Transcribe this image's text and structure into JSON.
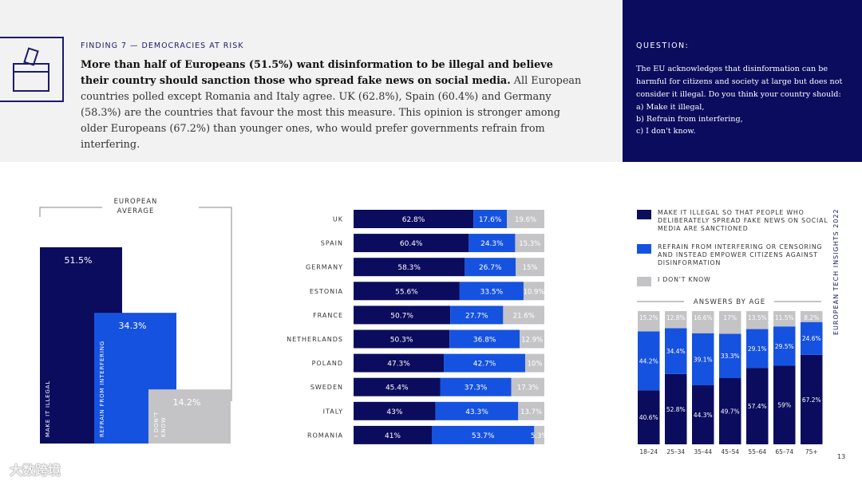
{
  "header": {
    "finding": "FINDING 7 — DEMOCRACIES AT RISK",
    "lead_bold": "More than half of Europeans (51.5%) want disinformation to be illegal and believe their country should sanction those who spread fake news on social media.",
    "lead_rest": " All European countries polled except Romania and Italy agree. UK (62.8%), Spain (60.4%) and Germany (58.3%) are the countries that favour the most this measure. This opinion is stronger among older Europeans (67.2%) than younger ones, who would prefer governments refrain from interfering."
  },
  "question": {
    "title": "QUESTION:",
    "text": "The EU acknowledges that disinformation can be harmful for citizens and society at large but does not consider it illegal. Do you think your country should:",
    "options": [
      "a) Make it illegal,",
      "b) Refrain from interfering,",
      "c) I don't know."
    ]
  },
  "colors": {
    "illegal": "#0b0c5e",
    "refrain": "#1652e0",
    "dontknow": "#c4c4c6"
  },
  "legend": [
    {
      "key": "illegal",
      "label": "MAKE IT ILLEGAL SO THAT PEOPLE WHO DELIBERATELY SPREAD FAKE NEWS ON SOCIAL MEDIA ARE SANCTIONED"
    },
    {
      "key": "refrain",
      "label": "REFRAIN FROM INTERFERING OR CENSORING AND INSTEAD EMPOWER CITIZENS AGAINST DISINFORMATION"
    },
    {
      "key": "dontknow",
      "label": "I DON'T KNOW"
    }
  ],
  "side_text": "EUROPEAN TECH INSIGHTS 2022",
  "page_number": "13",
  "watermark": "大数跨境",
  "chart_data": [
    {
      "type": "bar",
      "title": "EUROPEAN AVERAGE",
      "categories": [
        "MAKE IT ILLEGAL",
        "REFRAIN FROM INTERFERING",
        "I DON'T KNOW"
      ],
      "values": [
        51.5,
        34.3,
        14.2
      ],
      "labels": [
        "51.5%",
        "34.3%",
        "14.2%"
      ],
      "ylim": [
        0,
        60
      ]
    },
    {
      "type": "bar",
      "orientation": "horizontal",
      "stacked": true,
      "categories": [
        "UK",
        "SPAIN",
        "GERMANY",
        "ESTONIA",
        "FRANCE",
        "NETHERLANDS",
        "POLAND",
        "SWEDEN",
        "ITALY",
        "ROMANIA"
      ],
      "series": [
        {
          "key": "illegal",
          "values": [
            62.8,
            60.4,
            58.3,
            55.6,
            50.7,
            50.3,
            47.3,
            45.4,
            43,
            41
          ],
          "labels": [
            "62.8%",
            "60.4%",
            "58.3%",
            "55.6%",
            "50.7%",
            "50.3%",
            "47.3%",
            "45.4%",
            "43%",
            "41%"
          ]
        },
        {
          "key": "refrain",
          "values": [
            17.6,
            24.3,
            26.7,
            33.5,
            27.7,
            36.8,
            42.7,
            37.3,
            43.3,
            53.7
          ],
          "labels": [
            "17.6%",
            "24.3%",
            "26.7%",
            "33.5%",
            "27.7%",
            "36.8%",
            "42.7%",
            "37.3%",
            "43.3%",
            "53.7%"
          ]
        },
        {
          "key": "dontknow",
          "values": [
            19.6,
            15.3,
            15,
            10.9,
            21.6,
            12.9,
            10,
            17.3,
            13.7,
            5.3
          ],
          "labels": [
            "19.6%",
            "15.3%",
            "15%",
            "10.9%",
            "21.6%",
            "12.9%",
            "10%",
            "17.3%",
            "13.7%",
            "5.3%"
          ]
        }
      ]
    },
    {
      "type": "bar",
      "stacked": true,
      "title": "ANSWERS BY AGE",
      "categories": [
        "18–24",
        "25–34",
        "35–44",
        "45–54",
        "55–64",
        "65–74",
        "75+"
      ],
      "series": [
        {
          "key": "illegal",
          "values": [
            40.6,
            52.8,
            44.3,
            49.7,
            57.4,
            59,
            67.2
          ],
          "labels": [
            "40.6%",
            "52.8%",
            "44.3%",
            "49.7%",
            "57.4%",
            "59%",
            "67.2%"
          ]
        },
        {
          "key": "refrain",
          "values": [
            44.2,
            34.4,
            39.1,
            33.3,
            29.1,
            29.5,
            24.6
          ],
          "labels": [
            "44.2%",
            "34.4%",
            "39.1%",
            "33.3%",
            "29.1%",
            "29.5%",
            "24.6%"
          ]
        },
        {
          "key": "dontknow",
          "values": [
            15.2,
            12.8,
            16.6,
            17,
            13.5,
            11.5,
            8.2
          ],
          "labels": [
            "15.2%",
            "12.8%",
            "16.6%",
            "17%",
            "13.5%",
            "11.5%",
            "8.2%"
          ]
        }
      ]
    }
  ]
}
